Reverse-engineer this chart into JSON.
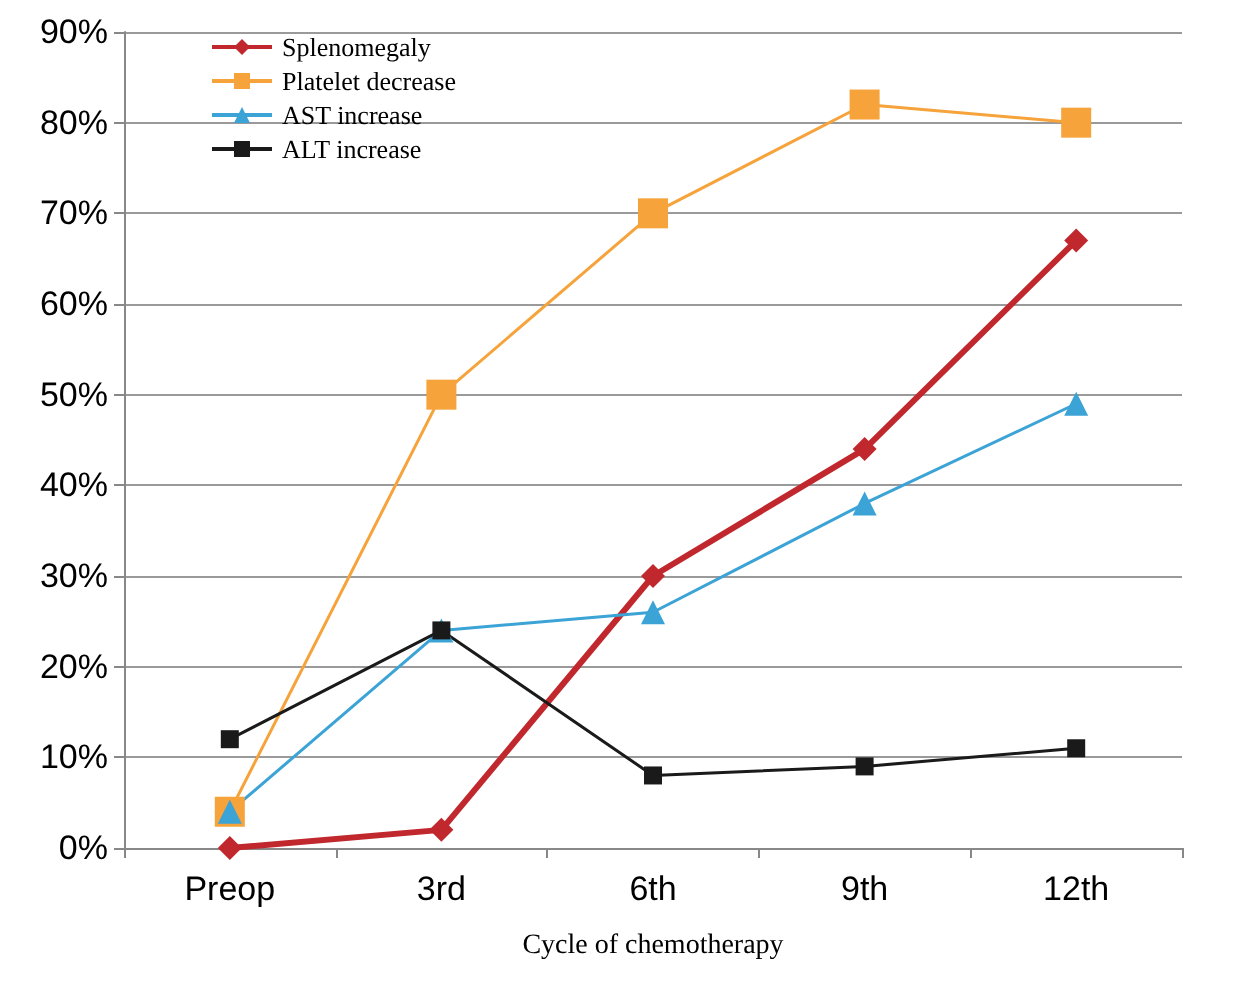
{
  "chart_data": {
    "type": "line",
    "xlabel": "Cycle of chemotherapy",
    "categories": [
      "Preop",
      "3rd",
      "6th",
      "9th",
      "12th"
    ],
    "series": [
      {
        "name": "Splenomegaly",
        "color": "#c0282d",
        "marker": "diamond",
        "values": [
          0,
          2,
          30,
          44,
          67
        ]
      },
      {
        "name": "Platelet decrease",
        "color": "#f5a33a",
        "marker": "square",
        "values": [
          4,
          50,
          70,
          82,
          80
        ]
      },
      {
        "name": "AST increase",
        "color": "#3ba3d6",
        "marker": "triangle",
        "values": [
          4,
          24,
          26,
          38,
          49
        ]
      },
      {
        "name": "ALT increase",
        "color": "#1a1a1a",
        "marker": "square",
        "values": [
          12,
          24,
          8,
          9,
          11
        ]
      }
    ],
    "ylim": [
      0,
      90
    ],
    "yticks": [
      {
        "value": 0,
        "label": "0%"
      },
      {
        "value": 10,
        "label": "10%"
      },
      {
        "value": 20,
        "label": "20%"
      },
      {
        "value": 30,
        "label": "30%"
      },
      {
        "value": 40,
        "label": "40%"
      },
      {
        "value": 50,
        "label": "50%"
      },
      {
        "value": 60,
        "label": "60%"
      },
      {
        "value": 70,
        "label": "70%"
      },
      {
        "value": 80,
        "label": "80%"
      },
      {
        "value": 90,
        "label": "90%"
      }
    ],
    "grid": "y",
    "legend": "top left"
  }
}
